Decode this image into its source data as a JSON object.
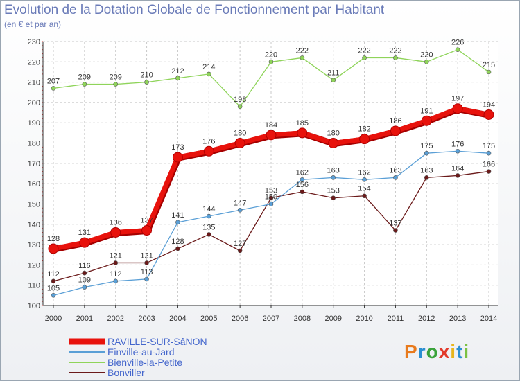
{
  "title": "Evolution de la Dotation Globale de Fonctionnement par Habitant",
  "subtitle": "(en € et par an)",
  "logo": {
    "letters": [
      "P",
      "r",
      "o",
      "x",
      "i",
      "t",
      "i"
    ],
    "colors": [
      "#e87a1c",
      "#2b8fd1",
      "#3aa33a",
      "#e23a2a",
      "#e8b51c",
      "#2b8fd1",
      "#7bc142"
    ]
  },
  "chart_data": {
    "type": "line",
    "x": [
      2000,
      2001,
      2002,
      2003,
      2004,
      2005,
      2006,
      2007,
      2008,
      2009,
      2010,
      2011,
      2012,
      2013,
      2014
    ],
    "ylim": [
      100,
      230
    ],
    "yticks": [
      100,
      110,
      120,
      130,
      140,
      150,
      160,
      170,
      180,
      190,
      200,
      210,
      220,
      230
    ],
    "grid": true,
    "legend": "bottom-left",
    "series": [
      {
        "name": "RAVILLE-SUR-SâNON",
        "color": "#e8120c",
        "values": [
          128,
          131,
          136,
          137,
          173,
          176,
          180,
          184,
          185,
          180,
          182,
          186,
          191,
          197,
          194
        ]
      },
      {
        "name": "Einville-au-Jard",
        "color": "#5a9fd6",
        "values": [
          105,
          109,
          112,
          113,
          141,
          144,
          147,
          150,
          162,
          163,
          162,
          163,
          175,
          176,
          175
        ]
      },
      {
        "name": "Bienville-la-Petite",
        "color": "#8fd45a",
        "values": [
          207,
          209,
          209,
          210,
          212,
          214,
          198,
          220,
          222,
          211,
          222,
          222,
          220,
          226,
          215
        ]
      },
      {
        "name": "Bonviller",
        "color": "#6b1a1a",
        "values": [
          112,
          116,
          121,
          121,
          128,
          135,
          127,
          153,
          156,
          153,
          154,
          137,
          163,
          164,
          166
        ]
      }
    ]
  }
}
